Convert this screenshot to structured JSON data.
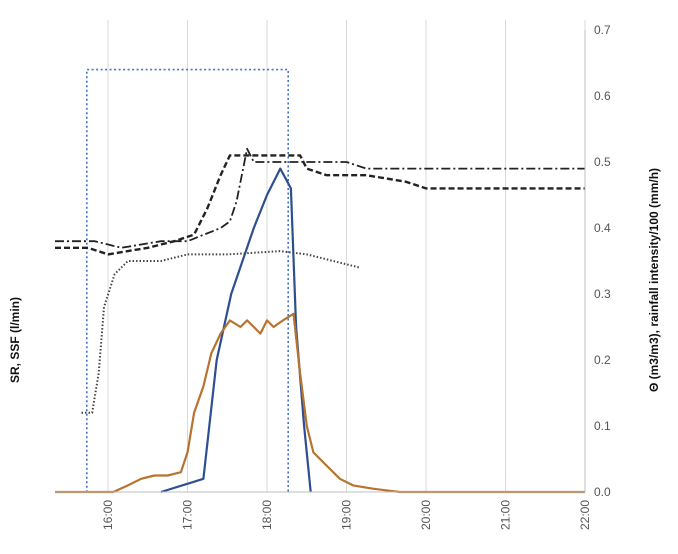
{
  "chart_data": {
    "type": "line",
    "title": "",
    "left_ylabel": "SR, SSF (l/min)",
    "right_ylabel": "Θ (m3/m3),  rainfall intensity/100 (mm/h)",
    "xlabel": "",
    "x_ticks": [
      "16:00",
      "17:00",
      "18:00",
      "19:00",
      "20:00",
      "21:00",
      "22:00"
    ],
    "x_range": [
      "15:20",
      "22:00"
    ],
    "right_y_ticks": [
      "0.0",
      "0.1",
      "0.2",
      "0.3",
      "0.4",
      "0.5",
      "0.6",
      "0.7"
    ],
    "ylim": [
      0,
      0.7
    ],
    "grid": "vertical",
    "legend": "none",
    "series": [
      {
        "key": "rainfall",
        "style": "dotted",
        "color": "#4472c4",
        "points": [
          [
            "15:20",
            0
          ],
          [
            "15:44",
            0
          ],
          [
            "15:44",
            0.64
          ],
          [
            "18:16",
            0.64
          ],
          [
            "18:16",
            0
          ]
        ]
      },
      {
        "key": "ssf",
        "style": "solid",
        "color": "#2e4f8f",
        "points": [
          [
            "16:40",
            0
          ],
          [
            "17:12",
            0.02
          ],
          [
            "17:22",
            0.2
          ],
          [
            "17:33",
            0.3
          ],
          [
            "17:50",
            0.4
          ],
          [
            "18:00",
            0.45
          ],
          [
            "18:10",
            0.49
          ],
          [
            "18:18",
            0.46
          ],
          [
            "18:22",
            0.25
          ],
          [
            "18:28",
            0.1
          ],
          [
            "18:33",
            0
          ]
        ]
      },
      {
        "key": "sr",
        "style": "solid",
        "color": "#b7732f",
        "points": [
          [
            "15:20",
            0
          ],
          [
            "16:04",
            0
          ],
          [
            "16:15",
            0.01
          ],
          [
            "16:25",
            0.02
          ],
          [
            "16:35",
            0.025
          ],
          [
            "16:45",
            0.025
          ],
          [
            "16:55",
            0.03
          ],
          [
            "17:00",
            0.06
          ],
          [
            "17:05",
            0.12
          ],
          [
            "17:12",
            0.16
          ],
          [
            "17:18",
            0.21
          ],
          [
            "17:25",
            0.24
          ],
          [
            "17:32",
            0.26
          ],
          [
            "17:40",
            0.25
          ],
          [
            "17:45",
            0.26
          ],
          [
            "17:50",
            0.25
          ],
          [
            "17:55",
            0.24
          ],
          [
            "18:00",
            0.26
          ],
          [
            "18:05",
            0.25
          ],
          [
            "18:12",
            0.26
          ],
          [
            "18:20",
            0.27
          ],
          [
            "18:25",
            0.18
          ],
          [
            "18:30",
            0.1
          ],
          [
            "18:35",
            0.06
          ],
          [
            "18:45",
            0.04
          ],
          [
            "18:55",
            0.02
          ],
          [
            "19:05",
            0.01
          ],
          [
            "19:20",
            0.005
          ],
          [
            "19:40",
            0
          ],
          [
            "22:00",
            0
          ]
        ]
      },
      {
        "key": "theta1",
        "style": "dashed",
        "color": "#222222",
        "points": [
          [
            "15:20",
            0.37
          ],
          [
            "15:45",
            0.37
          ],
          [
            "16:00",
            0.36
          ],
          [
            "16:30",
            0.37
          ],
          [
            "16:50",
            0.38
          ],
          [
            "17:05",
            0.39
          ],
          [
            "17:15",
            0.43
          ],
          [
            "17:25",
            0.48
          ],
          [
            "17:32",
            0.51
          ],
          [
            "18:00",
            0.51
          ],
          [
            "18:25",
            0.51
          ],
          [
            "18:30",
            0.49
          ],
          [
            "18:45",
            0.48
          ],
          [
            "19:15",
            0.48
          ],
          [
            "19:45",
            0.47
          ],
          [
            "20:00",
            0.46
          ],
          [
            "22:00",
            0.46
          ]
        ]
      },
      {
        "key": "theta2",
        "style": "dashdot",
        "color": "#222222",
        "points": [
          [
            "15:20",
            0.38
          ],
          [
            "15:50",
            0.38
          ],
          [
            "16:10",
            0.37
          ],
          [
            "16:40",
            0.38
          ],
          [
            "17:00",
            0.38
          ],
          [
            "17:25",
            0.4
          ],
          [
            "17:32",
            0.41
          ],
          [
            "17:37",
            0.44
          ],
          [
            "17:45",
            0.52
          ],
          [
            "17:50",
            0.5
          ],
          [
            "18:30",
            0.5
          ],
          [
            "19:00",
            0.5
          ],
          [
            "19:15",
            0.49
          ],
          [
            "20:00",
            0.49
          ],
          [
            "22:00",
            0.49
          ]
        ]
      },
      {
        "key": "theta3",
        "style": "finedotted",
        "color": "#444444",
        "points": [
          [
            "15:40",
            0.12
          ],
          [
            "15:48",
            0.12
          ],
          [
            "15:53",
            0.18
          ],
          [
            "15:57",
            0.28
          ],
          [
            "16:05",
            0.33
          ],
          [
            "16:15",
            0.35
          ],
          [
            "16:40",
            0.35
          ],
          [
            "17:00",
            0.36
          ],
          [
            "17:30",
            0.36
          ],
          [
            "18:10",
            0.365
          ],
          [
            "18:30",
            0.36
          ],
          [
            "18:50",
            0.35
          ],
          [
            "19:10",
            0.34
          ]
        ]
      }
    ]
  }
}
